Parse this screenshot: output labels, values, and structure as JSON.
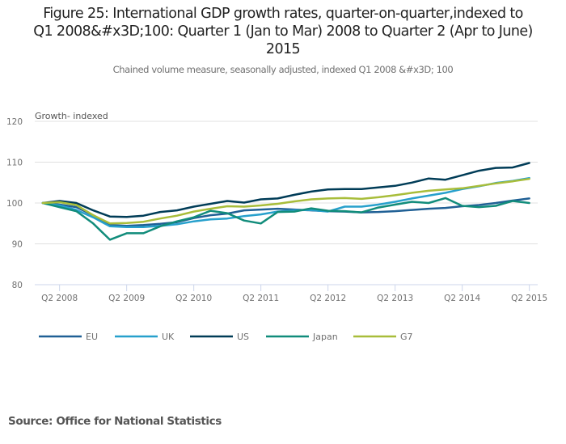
{
  "title": "Figure 25: International GDP growth rates, quarter-on-quarter,indexed to Q1 2008&#x3D;100: Quarter 1 (Jan to Mar) 2008 to Quarter 2 (Apr to June) 2015",
  "title_lines": [
    "Figure 25: International GDP growth rates, quarter-on-quarter,indexed to",
    "Q1 2008&#x3D;100: Quarter 1 (Jan to Mar) 2008 to Quarter 2 (Apr to June)",
    "2015"
  ],
  "subtitle": "Chained volume measure, seasonally adjusted, indexed Q1 2008 &#x3D; 100",
  "source": "Source: Office for National Statistics",
  "chart_data": {
    "type": "line",
    "title": "Figure 25: International GDP growth rates, quarter-on-quarter,indexed to Q1 2008&#x3D;100: Quarter 1 (Jan to Mar) 2008 to Quarter 2 (Apr to June) 2015",
    "subtitle": "Chained volume measure, seasonally adjusted, indexed Q1 2008 &#x3D; 100",
    "xlabel": "",
    "ylabel": "Growth- indexed",
    "ylim": [
      80,
      120
    ],
    "yticks": [
      80,
      90,
      100,
      110,
      120
    ],
    "grid": true,
    "legend_position": "bottom-left",
    "x": [
      "Q1 2008",
      "Q2 2008",
      "Q3 2008",
      "Q4 2008",
      "Q1 2009",
      "Q2 2009",
      "Q3 2009",
      "Q4 2009",
      "Q1 2010",
      "Q2 2010",
      "Q3 2010",
      "Q4 2010",
      "Q1 2011",
      "Q2 2011",
      "Q3 2011",
      "Q4 2011",
      "Q1 2012",
      "Q2 2012",
      "Q3 2012",
      "Q4 2012",
      "Q1 2013",
      "Q2 2013",
      "Q3 2013",
      "Q4 2013",
      "Q1 2014",
      "Q2 2014",
      "Q3 2014",
      "Q4 2014",
      "Q1 2015",
      "Q2 2015"
    ],
    "xtick_labels": [
      "Q2 2008",
      "Q2 2009",
      "Q2 2010",
      "Q2 2011",
      "Q2 2012",
      "Q2 2013",
      "Q2 2014",
      "Q2 2015"
    ],
    "series": [
      {
        "name": "EU",
        "color": "#206095",
        "values": [
          100,
          99.6,
          99.0,
          97.0,
          94.6,
          94.4,
          94.6,
          94.9,
          95.3,
          96.3,
          97.0,
          97.4,
          98.2,
          98.4,
          98.6,
          98.4,
          98.2,
          98.0,
          97.9,
          97.7,
          97.8,
          98.0,
          98.3,
          98.6,
          98.8,
          99.2,
          99.5,
          100.0,
          100.6,
          101.1
        ]
      },
      {
        "name": "UK",
        "color": "#27a0cc",
        "values": [
          100,
          99.4,
          98.3,
          96.5,
          94.3,
          94.1,
          94.1,
          94.4,
          94.8,
          95.5,
          96.0,
          96.2,
          96.8,
          97.2,
          97.9,
          98.2,
          98.3,
          97.9,
          99.1,
          99.1,
          99.6,
          100.3,
          101.1,
          101.8,
          102.5,
          103.4,
          104.1,
          104.9,
          105.4,
          106.1
        ]
      },
      {
        "name": "US",
        "color": "#003c57",
        "values": [
          100,
          100.5,
          100.0,
          98.2,
          96.7,
          96.6,
          96.9,
          97.8,
          98.2,
          99.1,
          99.8,
          100.5,
          100.1,
          100.9,
          101.1,
          102.0,
          102.8,
          103.3,
          103.4,
          103.4,
          103.8,
          104.2,
          105.0,
          106.0,
          105.7,
          106.8,
          107.9,
          108.6,
          108.7,
          109.8
        ]
      },
      {
        "name": "Japan",
        "color": "#118c7b",
        "values": [
          100,
          99.0,
          98.0,
          95.0,
          91.0,
          92.6,
          92.6,
          94.3,
          95.5,
          96.5,
          98.1,
          97.5,
          95.7,
          95.0,
          97.8,
          97.9,
          98.7,
          98.1,
          98.0,
          97.7,
          98.9,
          99.6,
          100.3,
          100.0,
          101.2,
          99.3,
          99.0,
          99.3,
          100.5,
          100.0
        ]
      },
      {
        "name": "G7",
        "color": "#a8bd3a",
        "values": [
          100,
          100.2,
          99.5,
          97.0,
          95.0,
          95.1,
          95.4,
          96.2,
          96.9,
          97.9,
          98.6,
          99.2,
          99.1,
          99.4,
          99.8,
          100.4,
          100.9,
          101.1,
          101.2,
          101.0,
          101.4,
          101.9,
          102.5,
          103.0,
          103.3,
          103.6,
          104.2,
          104.8,
          105.3,
          105.9
        ]
      }
    ]
  },
  "colors": {
    "gridline": "#e0e0e0",
    "axis": "#ccd6eb",
    "text": "#707070"
  }
}
